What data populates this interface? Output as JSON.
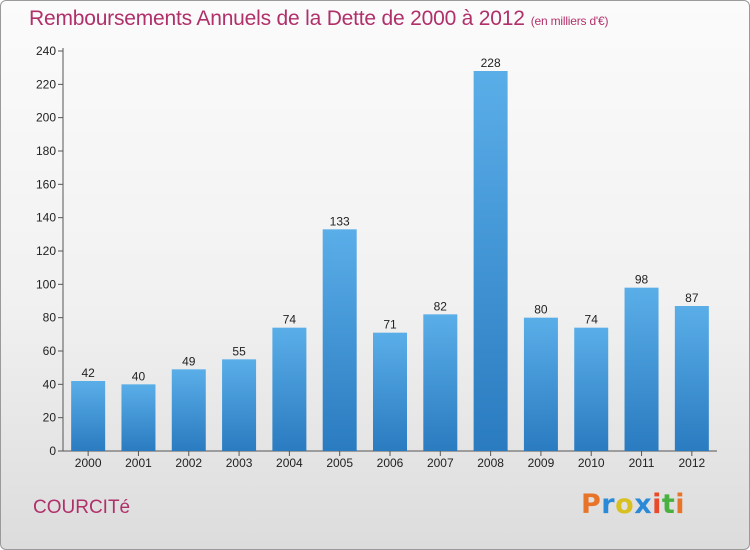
{
  "header": {
    "title": "Remboursements Annuels de la Dette de 2000 à 2012",
    "subtitle": "(en milliers d'€)"
  },
  "footer": {
    "place": "COURCITé",
    "logo_text": "Proxiti"
  },
  "colors": {
    "title": "#b0306a",
    "bar_light": "#5aaee8",
    "bar_dark": "#2a7bc0",
    "logo_letters": [
      "#e8742a",
      "#2a8ad8",
      "#d8c020",
      "#2a8ad8",
      "#e84a2a",
      "#4ab040",
      "#e8742a"
    ]
  },
  "chart_data": {
    "type": "bar",
    "categories": [
      "2000",
      "2001",
      "2002",
      "2003",
      "2004",
      "2005",
      "2006",
      "2007",
      "2008",
      "2009",
      "2010",
      "2011",
      "2012"
    ],
    "values": [
      42,
      40,
      49,
      55,
      74,
      133,
      71,
      82,
      228,
      80,
      74,
      98,
      87
    ],
    "ylim": [
      0,
      240
    ],
    "yticks": [
      0,
      20,
      40,
      60,
      80,
      100,
      120,
      140,
      160,
      180,
      200,
      220,
      240
    ],
    "grid": false,
    "legend": "none"
  }
}
